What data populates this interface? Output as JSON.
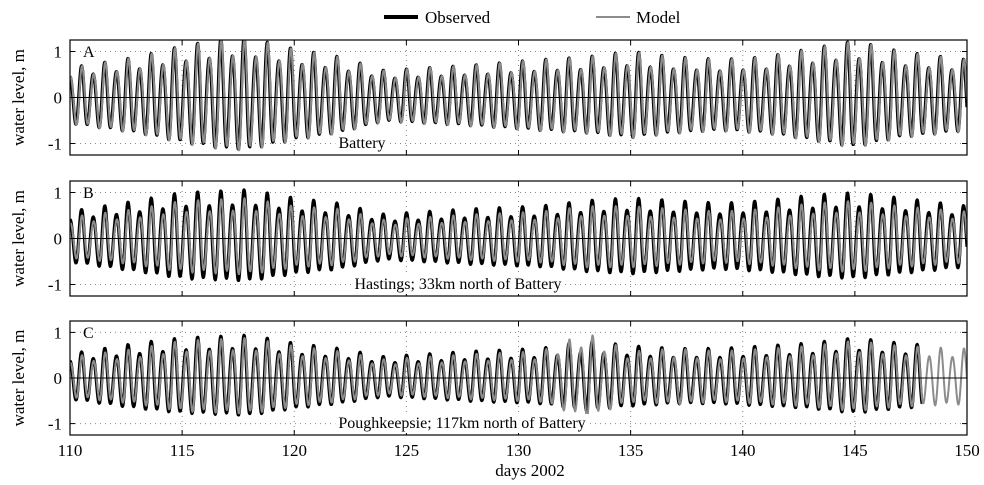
{
  "chart_data": {
    "type": "line",
    "legend": {
      "placement": "top-center",
      "entries": [
        {
          "name": "Observed",
          "color": "#000000"
        },
        {
          "name": "Model",
          "color": "#8c8c8c"
        }
      ]
    },
    "xlabel": "days 2002",
    "xlim": [
      110,
      150
    ],
    "xticks": [
      110,
      115,
      120,
      125,
      130,
      135,
      140,
      145,
      150
    ],
    "grid": "dotted",
    "panels": [
      {
        "letter": "A",
        "label": "Battery",
        "ylabel": "water level, m",
        "ylim": [
          -1.25,
          1.25
        ],
        "yticks": [
          -1,
          0,
          1
        ],
        "series": [
          {
            "name": "Observed",
            "color": "#000000",
            "amplitude_by_day": {
              "110": 0.55,
              "113": 0.75,
              "115": 0.95,
              "117": 1.1,
              "118": 1.1,
              "120": 0.9,
              "122": 0.75,
              "124": 0.5,
              "126": 0.55,
              "128": 0.6,
              "131": 0.7,
              "133": 0.75,
              "135": 0.85,
              "137": 0.75,
              "139": 0.7,
              "141": 0.75,
              "143": 0.9,
              "145": 1.05,
              "147": 0.85,
              "150": 0.7
            }
          },
          {
            "name": "Model",
            "color": "#8c8c8c",
            "amplitude_by_day": {
              "110": 0.55,
              "113": 0.75,
              "115": 0.95,
              "117": 1.1,
              "118": 1.1,
              "120": 0.9,
              "122": 0.75,
              "124": 0.5,
              "126": 0.55,
              "128": 0.6,
              "131": 0.7,
              "133": 0.75,
              "135": 0.85,
              "137": 0.75,
              "139": 0.7,
              "141": 0.75,
              "143": 0.9,
              "145": 1.05,
              "147": 0.85,
              "150": 0.7
            }
          }
        ]
      },
      {
        "letter": "B",
        "label": "Hastings; 33km north of Battery",
        "ylabel": "water level, m",
        "ylim": [
          -1.25,
          1.25
        ],
        "yticks": [
          -1,
          0,
          1
        ],
        "series": [
          {
            "name": "Observed",
            "color": "#000000",
            "amplitude_by_day": {
              "110": 0.5,
              "113": 0.7,
              "115": 0.85,
              "118": 0.9,
              "120": 0.75,
              "122": 0.65,
              "124": 0.45,
              "126": 0.5,
              "128": 0.55,
              "131": 0.6,
              "133": 0.7,
              "135": 0.75,
              "137": 0.7,
              "139": 0.65,
              "141": 0.7,
              "143": 0.8,
              "145": 0.85,
              "147": 0.75,
              "150": 0.6
            }
          },
          {
            "name": "Model",
            "color": "#8c8c8c",
            "amplitude_by_day": {
              "110": 0.4,
              "113": 0.55,
              "115": 0.7,
              "118": 0.75,
              "120": 0.6,
              "122": 0.55,
              "124": 0.35,
              "126": 0.4,
              "128": 0.45,
              "131": 0.5,
              "133": 0.6,
              "135": 0.6,
              "137": 0.55,
              "139": 0.5,
              "141": 0.55,
              "143": 0.65,
              "145": 0.7,
              "147": 0.6,
              "150": 0.5
            }
          }
        ]
      },
      {
        "letter": "C",
        "label": "Poughkeepsie; 117km north of Battery",
        "ylabel": "water level, m",
        "ylim": [
          -1.25,
          1.25
        ],
        "yticks": [
          -1,
          0,
          1
        ],
        "observed_end_day": 148,
        "series": [
          {
            "name": "Observed",
            "color": "#000000",
            "amplitude_by_day": {
              "110": 0.45,
              "113": 0.65,
              "115": 0.75,
              "118": 0.8,
              "120": 0.65,
              "122": 0.55,
              "124": 0.4,
              "126": 0.45,
              "128": 0.5,
              "131": 0.55,
              "133": 0.7,
              "135": 0.6,
              "137": 0.55,
              "139": 0.55,
              "141": 0.6,
              "143": 0.65,
              "145": 0.75,
              "147": 0.65,
              "150": 0.55
            }
          },
          {
            "name": "Model",
            "color": "#8c8c8c",
            "amplitude_by_day": {
              "110": 0.4,
              "113": 0.55,
              "115": 0.7,
              "118": 0.75,
              "120": 0.6,
              "122": 0.5,
              "124": 0.35,
              "126": 0.4,
              "128": 0.45,
              "131": 0.5,
              "133": 0.85,
              "135": 0.5,
              "137": 0.55,
              "139": 0.5,
              "141": 0.55,
              "143": 0.6,
              "145": 0.7,
              "147": 0.6,
              "150": 0.55
            }
          }
        ]
      }
    ]
  }
}
